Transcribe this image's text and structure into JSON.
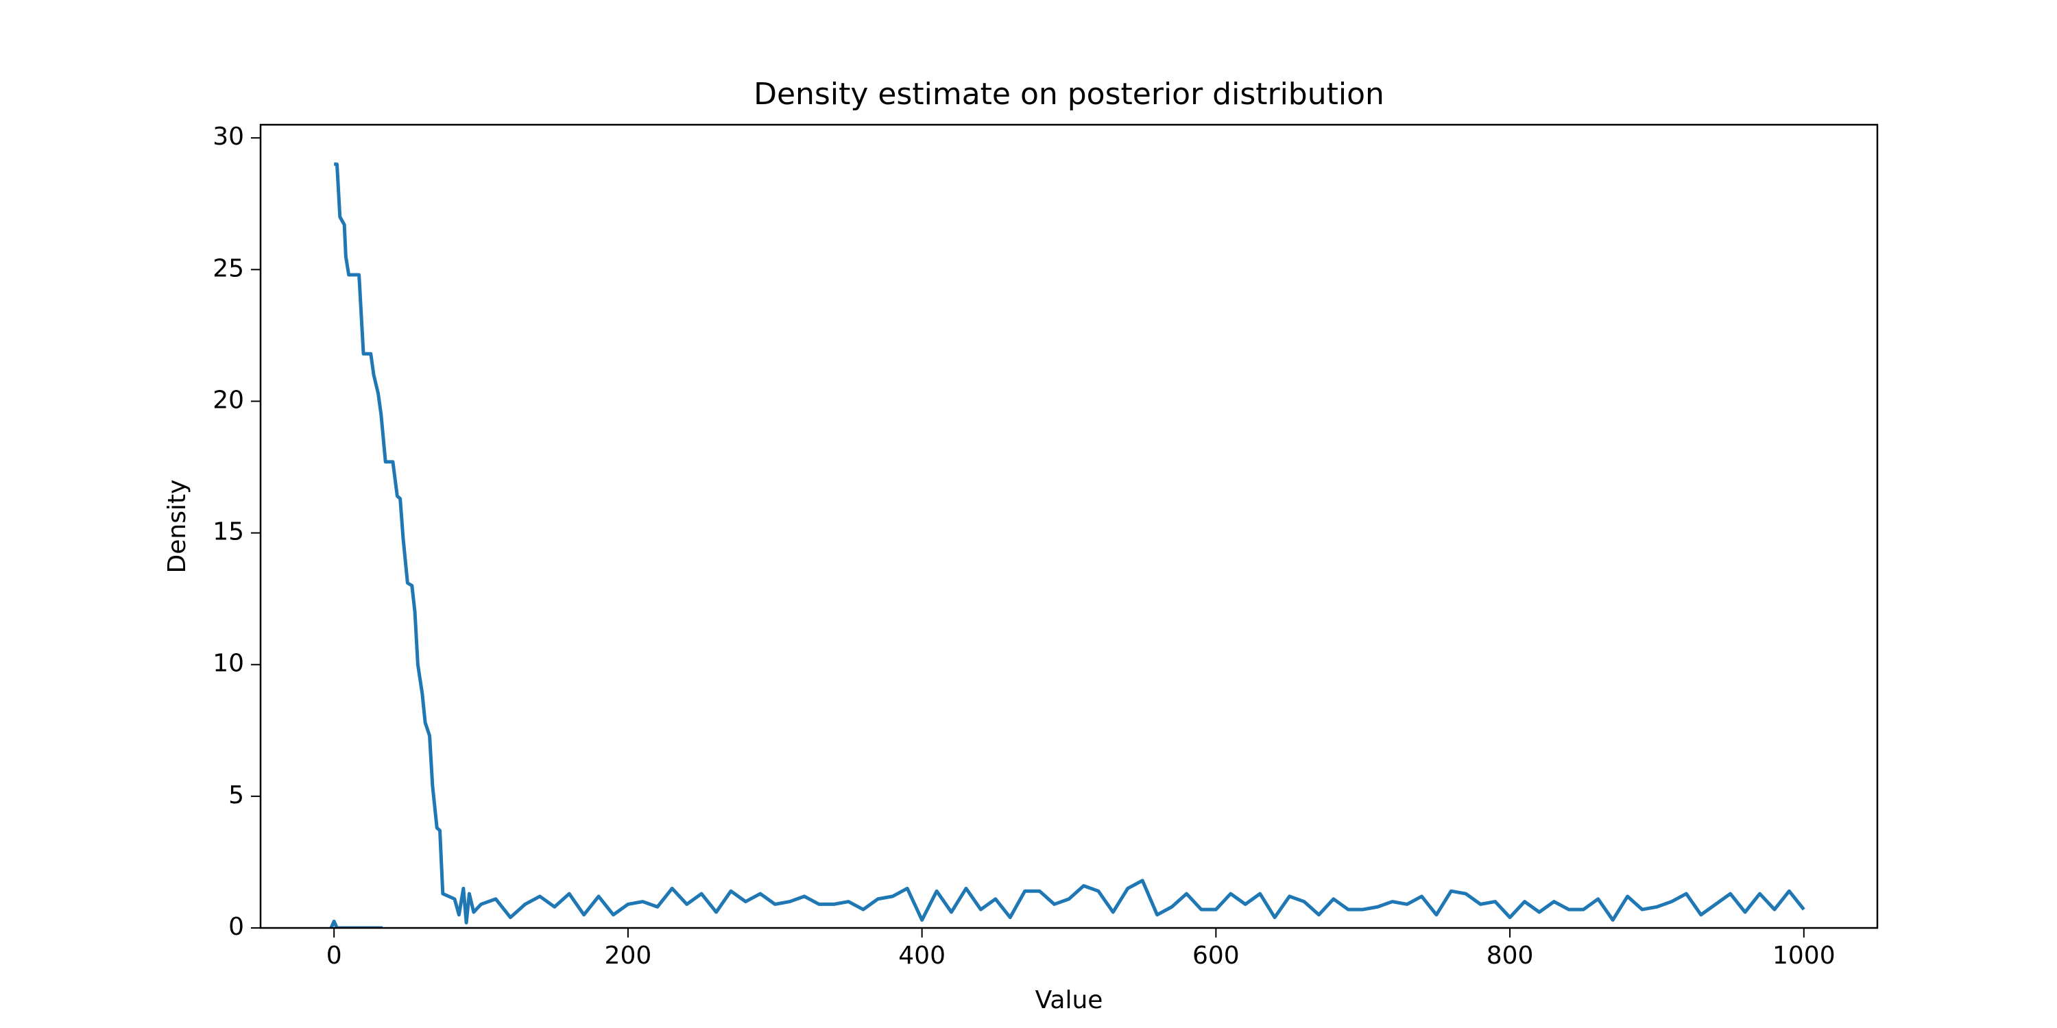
{
  "chart_data": {
    "type": "line",
    "title": "Density estimate on posterior distribution",
    "x_label": "Value",
    "y_label": "Density",
    "xlim": [
      -50,
      1050
    ],
    "xticks": [
      0,
      200,
      400,
      600,
      800,
      1000
    ],
    "ylim": [
      0,
      30.5
    ],
    "yticks": [
      0,
      5,
      10,
      15,
      20,
      25,
      30
    ],
    "grid": false,
    "series": [
      {
        "color": "#1f77b4",
        "x": [
          0,
          2,
          4,
          7,
          8,
          10,
          17,
          20,
          25,
          27,
          30,
          32,
          35,
          40,
          43,
          45,
          47,
          50,
          53,
          55,
          57,
          60,
          62,
          65,
          67,
          70,
          72,
          74,
          78,
          82,
          85,
          88,
          90,
          92,
          95,
          100,
          110,
          120,
          130,
          140,
          150,
          160,
          170,
          180,
          190,
          200,
          210,
          220,
          230,
          240,
          250,
          260,
          270,
          280,
          290,
          300,
          310,
          320,
          330,
          340,
          350,
          360,
          370,
          380,
          390,
          400,
          410,
          420,
          430,
          440,
          450,
          460,
          470,
          480,
          490,
          500,
          510,
          520,
          530,
          540,
          550,
          560,
          570,
          580,
          590,
          600,
          610,
          620,
          630,
          640,
          650,
          660,
          670,
          680,
          690,
          700,
          710,
          720,
          730,
          740,
          750,
          760,
          770,
          780,
          790,
          800,
          810,
          820,
          830,
          840,
          850,
          860,
          870,
          880,
          890,
          900,
          910,
          920,
          930,
          940,
          950,
          960,
          970,
          980,
          990,
          1000
        ],
        "values": [
          29,
          29,
          27,
          26.7,
          25.5,
          24.8,
          24.8,
          21.8,
          21.8,
          21,
          20.3,
          19.5,
          17.7,
          17.7,
          16.4,
          16.3,
          14.8,
          13.1,
          13,
          12,
          10,
          8.9,
          7.8,
          7.3,
          5.4,
          3.8,
          3.7,
          1.3,
          1.2,
          1.1,
          0.5,
          1.5,
          0.2,
          1.3,
          0.6,
          0.9,
          1.1,
          0.4,
          0.9,
          1.2,
          0.8,
          1.3,
          0.5,
          1.2,
          0.5,
          0.9,
          1.0,
          0.8,
          1.5,
          0.9,
          1.3,
          0.6,
          1.4,
          1.0,
          1.3,
          0.9,
          1.0,
          1.2,
          0.9,
          0.9,
          1.0,
          0.7,
          1.1,
          1.2,
          1.5,
          0.3,
          1.4,
          0.6,
          1.5,
          0.7,
          1.1,
          0.4,
          1.4,
          1.4,
          0.9,
          1.1,
          1.6,
          1.4,
          0.6,
          1.5,
          1.8,
          0.5,
          0.8,
          1.3,
          0.7,
          0.7,
          1.3,
          0.9,
          1.3,
          0.4,
          1.2,
          1.0,
          0.5,
          1.1,
          0.7,
          0.7,
          0.8,
          1.0,
          0.9,
          1.2,
          0.5,
          1.4,
          1.3,
          0.9,
          1.0,
          0.4,
          1.0,
          0.6,
          1.0,
          0.7,
          0.7,
          1.1,
          0.3,
          1.2,
          0.7,
          0.8,
          1.0,
          1.3,
          0.5,
          0.9,
          1.3,
          0.6,
          1.3,
          0.7,
          1.4,
          0.7
        ]
      },
      {
        "color": "#1f77b4",
        "x": [
          -2,
          0,
          2,
          5,
          33
        ],
        "values": [
          0,
          0.25,
          0,
          0,
          0
        ]
      }
    ]
  }
}
